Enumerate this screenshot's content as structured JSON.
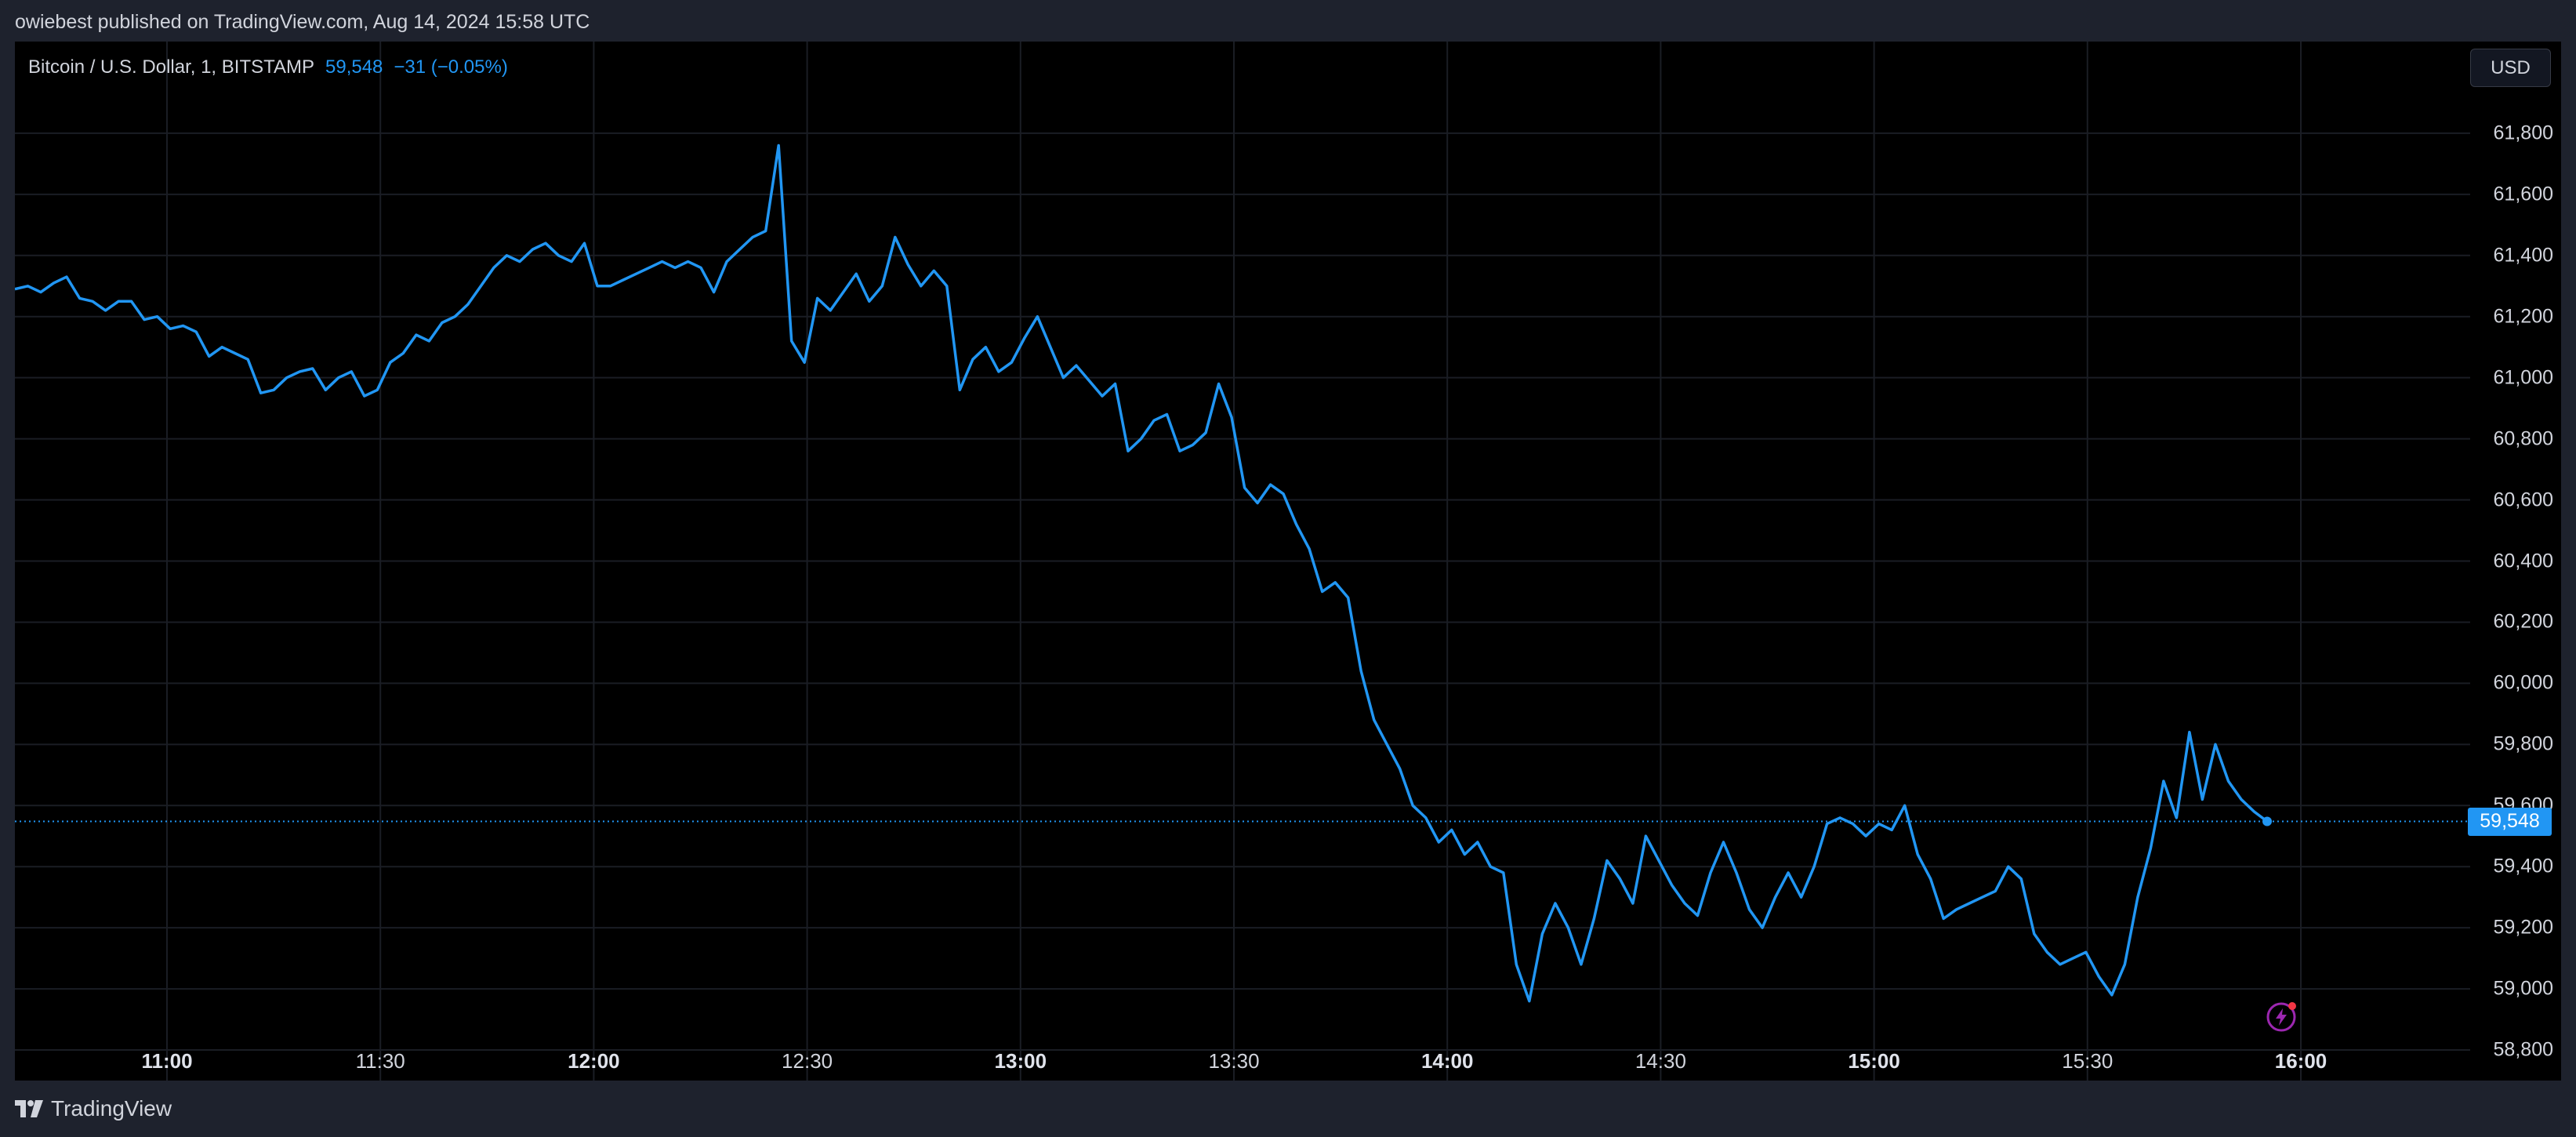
{
  "attribution": "owiebest published on TradingView.com, Aug 14, 2024 15:58 UTC",
  "legend": {
    "symbol": "Bitcoin / U.S. Dollar, 1, BITSTAMP",
    "last": "59,548",
    "change": "−31 (−0.05%)"
  },
  "currency_button": "USD",
  "last_price_label": "59,548",
  "footer_brand": "TradingView",
  "colors": {
    "line": "#2196f3",
    "background": "#000000",
    "grid": "#1a1d24",
    "last_price_tag": "#2196f3",
    "alert_icon": "#9c27b0"
  },
  "chart_data": {
    "type": "line",
    "title": "Bitcoin / U.S. Dollar, 1, BITSTAMP",
    "series": [
      {
        "name": "Bitcoin / U.S. Dollar",
        "values": [
          61290,
          61300,
          61280,
          61310,
          61330,
          61260,
          61250,
          61220,
          61250,
          61250,
          61190,
          61200,
          61160,
          61170,
          61150,
          61070,
          61100,
          61080,
          61060,
          60950,
          60960,
          61000,
          61020,
          61030,
          60960,
          61000,
          61020,
          60940,
          60960,
          61050,
          61080,
          61140,
          61120,
          61180,
          61200,
          61240,
          61300,
          61360,
          61400,
          61380,
          61420,
          61440,
          61400,
          61380,
          61440,
          61300,
          61300,
          61320,
          61340,
          61360,
          61380,
          61360,
          61380,
          61360,
          61280,
          61380,
          61420,
          61460,
          61480,
          61760,
          61120,
          61050,
          61260,
          61220,
          61280,
          61340,
          61250,
          61300,
          61460,
          61370,
          61300,
          61350,
          61300,
          60960,
          61060,
          61100,
          61020,
          61050,
          61130,
          61200,
          61100,
          61000,
          61040,
          60990,
          60940,
          60980,
          60760,
          60800,
          60860,
          60880,
          60760,
          60780,
          60820,
          60980,
          60870,
          60640,
          60590,
          60650,
          60620,
          60520,
          60440,
          60300,
          60330,
          60280,
          60040,
          59880,
          59800,
          59720,
          59600,
          59560,
          59480,
          59520,
          59440,
          59480,
          59400,
          59380,
          59080,
          58960,
          59180,
          59280,
          59200,
          59080,
          59230,
          59420,
          59360,
          59280,
          59500,
          59420,
          59340,
          59280,
          59240,
          59380,
          59480,
          59380,
          59260,
          59200,
          59300,
          59380,
          59300,
          59400,
          59540,
          59560,
          59540,
          59500,
          59540,
          59520,
          59600,
          59440,
          59360,
          59230,
          59260,
          59280,
          59300,
          59320,
          59400,
          59360,
          59180,
          59120,
          59080,
          59100,
          59120,
          59040,
          58980,
          59080,
          59300,
          59460,
          59680,
          59560,
          59840,
          59620,
          59800,
          59680,
          59620,
          59580,
          59548
        ]
      }
    ],
    "x_axis_labels": [
      "11:00",
      "11:30",
      "12:00",
      "12:30",
      "13:00",
      "13:30",
      "14:00",
      "14:30",
      "15:00",
      "15:30",
      "16:00"
    ],
    "y_axis_labels": [
      "61,800",
      "61,600",
      "61,400",
      "61,200",
      "61,000",
      "60,800",
      "60,600",
      "60,400",
      "60,200",
      "60,000",
      "59,800",
      "59,600",
      "59,400",
      "59,200",
      "59,000",
      "58,800"
    ],
    "ylim": [
      58700,
      62100
    ],
    "last_price": 59548,
    "grid": true
  }
}
